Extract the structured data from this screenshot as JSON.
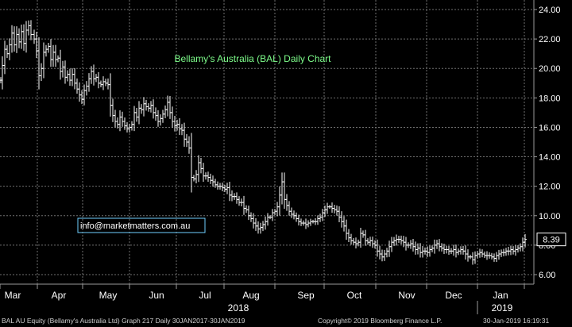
{
  "chart_data": {
    "type": "bar",
    "subtype": "ohlc-daily",
    "title": "Bellamy's Australia (BAL) Daily Chart",
    "watermark": "info@marketmatters.com.au",
    "y_ticks": [
      "6.00",
      "8.00",
      "10.00",
      "12.00",
      "14.00",
      "16.00",
      "18.00",
      "20.00",
      "22.00",
      "24.00"
    ],
    "ylim": [
      5.0,
      24.5
    ],
    "x_months": [
      "Mar",
      "Apr",
      "May",
      "Jun",
      "Jul",
      "Aug",
      "Sep",
      "Oct",
      "Nov",
      "Dec",
      "Jan"
    ],
    "x_years": [
      "2018",
      "2019"
    ],
    "last_price_label": "8.39",
    "grid": true,
    "colors": {
      "background": "#000000",
      "grid": "#6f6f6f",
      "price": "#ffffff",
      "title": "#7dfc8a",
      "watermark_border": "#6fd0ff",
      "label_box": "#ffffff"
    },
    "series": [
      {
        "values": [
          [
            0,
            19.2
          ],
          [
            2,
            20.2
          ],
          [
            5,
            21.3
          ],
          [
            8,
            21.0
          ],
          [
            11,
            21.6
          ],
          [
            14,
            22.4
          ],
          [
            17,
            21.6
          ],
          [
            20,
            22.3
          ],
          [
            23,
            21.8
          ],
          [
            26,
            22.5
          ],
          [
            29,
            21.7
          ],
          [
            32,
            22.6
          ],
          [
            35,
            22.9
          ],
          [
            38,
            22.3
          ],
          [
            42,
            22.0
          ],
          [
            45,
            21.2
          ],
          [
            48,
            19.5
          ],
          [
            51,
            20.0
          ],
          [
            54,
            21.1
          ],
          [
            57,
            21.3
          ],
          [
            60,
            21.5
          ],
          [
            63,
            20.6
          ],
          [
            66,
            21.1
          ],
          [
            69,
            20.6
          ],
          [
            72,
            20.7
          ],
          [
            75,
            19.8
          ],
          [
            78,
            20.1
          ],
          [
            81,
            19.4
          ],
          [
            84,
            19.6
          ],
          [
            87,
            19.2
          ],
          [
            90,
            19.6
          ],
          [
            93,
            19.0
          ],
          [
            96,
            18.6
          ],
          [
            99,
            18.2
          ],
          [
            102,
            17.9
          ],
          [
            105,
            18.5
          ],
          [
            108,
            18.8
          ],
          [
            111,
            19.3
          ],
          [
            114,
            19.8
          ],
          [
            117,
            19.3
          ],
          [
            120,
            19.4
          ],
          [
            123,
            19.0
          ],
          [
            126,
            18.9
          ],
          [
            129,
            19.1
          ],
          [
            132,
            19.0
          ],
          [
            135,
            18.9
          ],
          [
            138,
            17.5
          ],
          [
            141,
            16.8
          ],
          [
            144,
            16.4
          ],
          [
            147,
            16.2
          ],
          [
            150,
            16.7
          ],
          [
            153,
            16.4
          ],
          [
            156,
            16.1
          ],
          [
            159,
            15.9
          ],
          [
            162,
            16.0
          ],
          [
            165,
            16.2
          ],
          [
            168,
            17.0
          ],
          [
            171,
            16.7
          ],
          [
            174,
            17.3
          ],
          [
            177,
            17.2
          ],
          [
            180,
            17.6
          ],
          [
            183,
            17.4
          ],
          [
            186,
            17.3
          ],
          [
            189,
            17.5
          ],
          [
            192,
            17.0
          ],
          [
            195,
            16.8
          ],
          [
            198,
            16.4
          ],
          [
            201,
            16.6
          ],
          [
            204,
            16.9
          ],
          [
            207,
            17.2
          ],
          [
            210,
            17.7
          ],
          [
            213,
            17.0
          ],
          [
            216,
            16.4
          ],
          [
            219,
            16.1
          ],
          [
            222,
            16.2
          ],
          [
            225,
            15.9
          ],
          [
            228,
            15.8
          ],
          [
            231,
            15.2
          ],
          [
            234,
            15.0
          ],
          [
            237,
            14.6
          ],
          [
            240,
            12.6
          ],
          [
            243,
            12.5
          ],
          [
            246,
            12.8
          ],
          [
            249,
            13.6
          ],
          [
            252,
            13.2
          ],
          [
            255,
            12.7
          ],
          [
            258,
            12.7
          ],
          [
            261,
            12.6
          ],
          [
            264,
            12.4
          ],
          [
            267,
            12.3
          ],
          [
            270,
            12.1
          ],
          [
            273,
            12.0
          ],
          [
            276,
            12.0
          ],
          [
            279,
            11.9
          ],
          [
            282,
            11.8
          ],
          [
            285,
            11.9
          ],
          [
            288,
            11.4
          ],
          [
            291,
            11.3
          ],
          [
            294,
            11.3
          ],
          [
            297,
            11.1
          ],
          [
            300,
            10.9
          ],
          [
            303,
            10.9
          ],
          [
            306,
            10.5
          ],
          [
            309,
            10.4
          ],
          [
            312,
            10.0
          ],
          [
            315,
            9.8
          ],
          [
            318,
            9.5
          ],
          [
            321,
            9.3
          ],
          [
            324,
            9.1
          ],
          [
            327,
            9.2
          ],
          [
            330,
            9.4
          ],
          [
            333,
            9.6
          ],
          [
            336,
            9.9
          ],
          [
            339,
            9.9
          ],
          [
            342,
            10.2
          ],
          [
            345,
            10.3
          ],
          [
            348,
            10.6
          ],
          [
            351,
            11.4
          ],
          [
            354,
            12.3
          ],
          [
            357,
            11.1
          ],
          [
            360,
            10.7
          ],
          [
            363,
            10.3
          ],
          [
            366,
            10.1
          ],
          [
            369,
            10.0
          ],
          [
            372,
            9.8
          ],
          [
            375,
            9.6
          ],
          [
            378,
            9.5
          ],
          [
            381,
            9.5
          ],
          [
            384,
            9.4
          ],
          [
            387,
            9.5
          ],
          [
            390,
            9.6
          ],
          [
            393,
            9.6
          ],
          [
            396,
            9.6
          ],
          [
            399,
            9.8
          ],
          [
            402,
            9.9
          ],
          [
            405,
            10.2
          ],
          [
            408,
            10.4
          ],
          [
            411,
            10.6
          ],
          [
            414,
            10.6
          ],
          [
            417,
            10.5
          ],
          [
            420,
            10.4
          ],
          [
            423,
            10.3
          ],
          [
            426,
            9.9
          ],
          [
            429,
            9.6
          ],
          [
            432,
            9.3
          ],
          [
            435,
            8.8
          ],
          [
            438,
            8.5
          ],
          [
            441,
            8.3
          ],
          [
            444,
            8.2
          ],
          [
            447,
            8.1
          ],
          [
            450,
            8.2
          ],
          [
            453,
            8.8
          ],
          [
            456,
            8.7
          ],
          [
            459,
            8.3
          ],
          [
            462,
            8.2
          ],
          [
            465,
            8.3
          ],
          [
            468,
            8.1
          ],
          [
            471,
            8.0
          ],
          [
            474,
            7.6
          ],
          [
            477,
            7.4
          ],
          [
            480,
            7.2
          ],
          [
            483,
            7.4
          ],
          [
            486,
            7.6
          ],
          [
            489,
            7.9
          ],
          [
            492,
            8.2
          ],
          [
            495,
            8.3
          ],
          [
            498,
            8.4
          ],
          [
            501,
            8.4
          ],
          [
            504,
            8.3
          ],
          [
            507,
            8.2
          ],
          [
            510,
            8.0
          ],
          [
            513,
            8.0
          ],
          [
            516,
            8.1
          ],
          [
            519,
            7.9
          ],
          [
            522,
            7.7
          ],
          [
            525,
            7.8
          ],
          [
            528,
            7.5
          ],
          [
            531,
            7.6
          ],
          [
            534,
            7.6
          ],
          [
            537,
            7.5
          ],
          [
            540,
            7.7
          ],
          [
            543,
            7.8
          ],
          [
            546,
            8.0
          ],
          [
            549,
            8.1
          ],
          [
            552,
            7.9
          ],
          [
            555,
            7.8
          ],
          [
            558,
            7.7
          ],
          [
            561,
            7.7
          ],
          [
            564,
            7.6
          ],
          [
            567,
            7.6
          ],
          [
            570,
            7.7
          ],
          [
            573,
            7.5
          ],
          [
            576,
            7.6
          ],
          [
            579,
            7.7
          ],
          [
            582,
            7.6
          ],
          [
            585,
            7.4
          ],
          [
            588,
            7.2
          ],
          [
            591,
            7.2
          ],
          [
            594,
            7.0
          ],
          [
            597,
            7.3
          ],
          [
            600,
            7.4
          ],
          [
            603,
            7.5
          ],
          [
            606,
            7.4
          ],
          [
            609,
            7.3
          ],
          [
            612,
            7.3
          ],
          [
            615,
            7.3
          ],
          [
            618,
            7.2
          ],
          [
            621,
            7.1
          ],
          [
            624,
            7.3
          ],
          [
            627,
            7.4
          ],
          [
            630,
            7.5
          ],
          [
            633,
            7.5
          ],
          [
            636,
            7.6
          ],
          [
            639,
            7.6
          ],
          [
            642,
            7.7
          ],
          [
            645,
            7.6
          ],
          [
            648,
            7.7
          ],
          [
            651,
            7.8
          ],
          [
            654,
            7.9
          ],
          [
            657,
            8.2
          ],
          [
            660,
            8.39
          ]
        ]
      }
    ]
  },
  "footer": {
    "left": "BAL AU Equity (Bellamy's Australia Ltd) Graph 217  Daily 30JAN2017-30JAN2019",
    "center": "Copyright© 2019 Bloomberg Finance L.P.",
    "right": "30-Jan-2019 16:19:31"
  }
}
